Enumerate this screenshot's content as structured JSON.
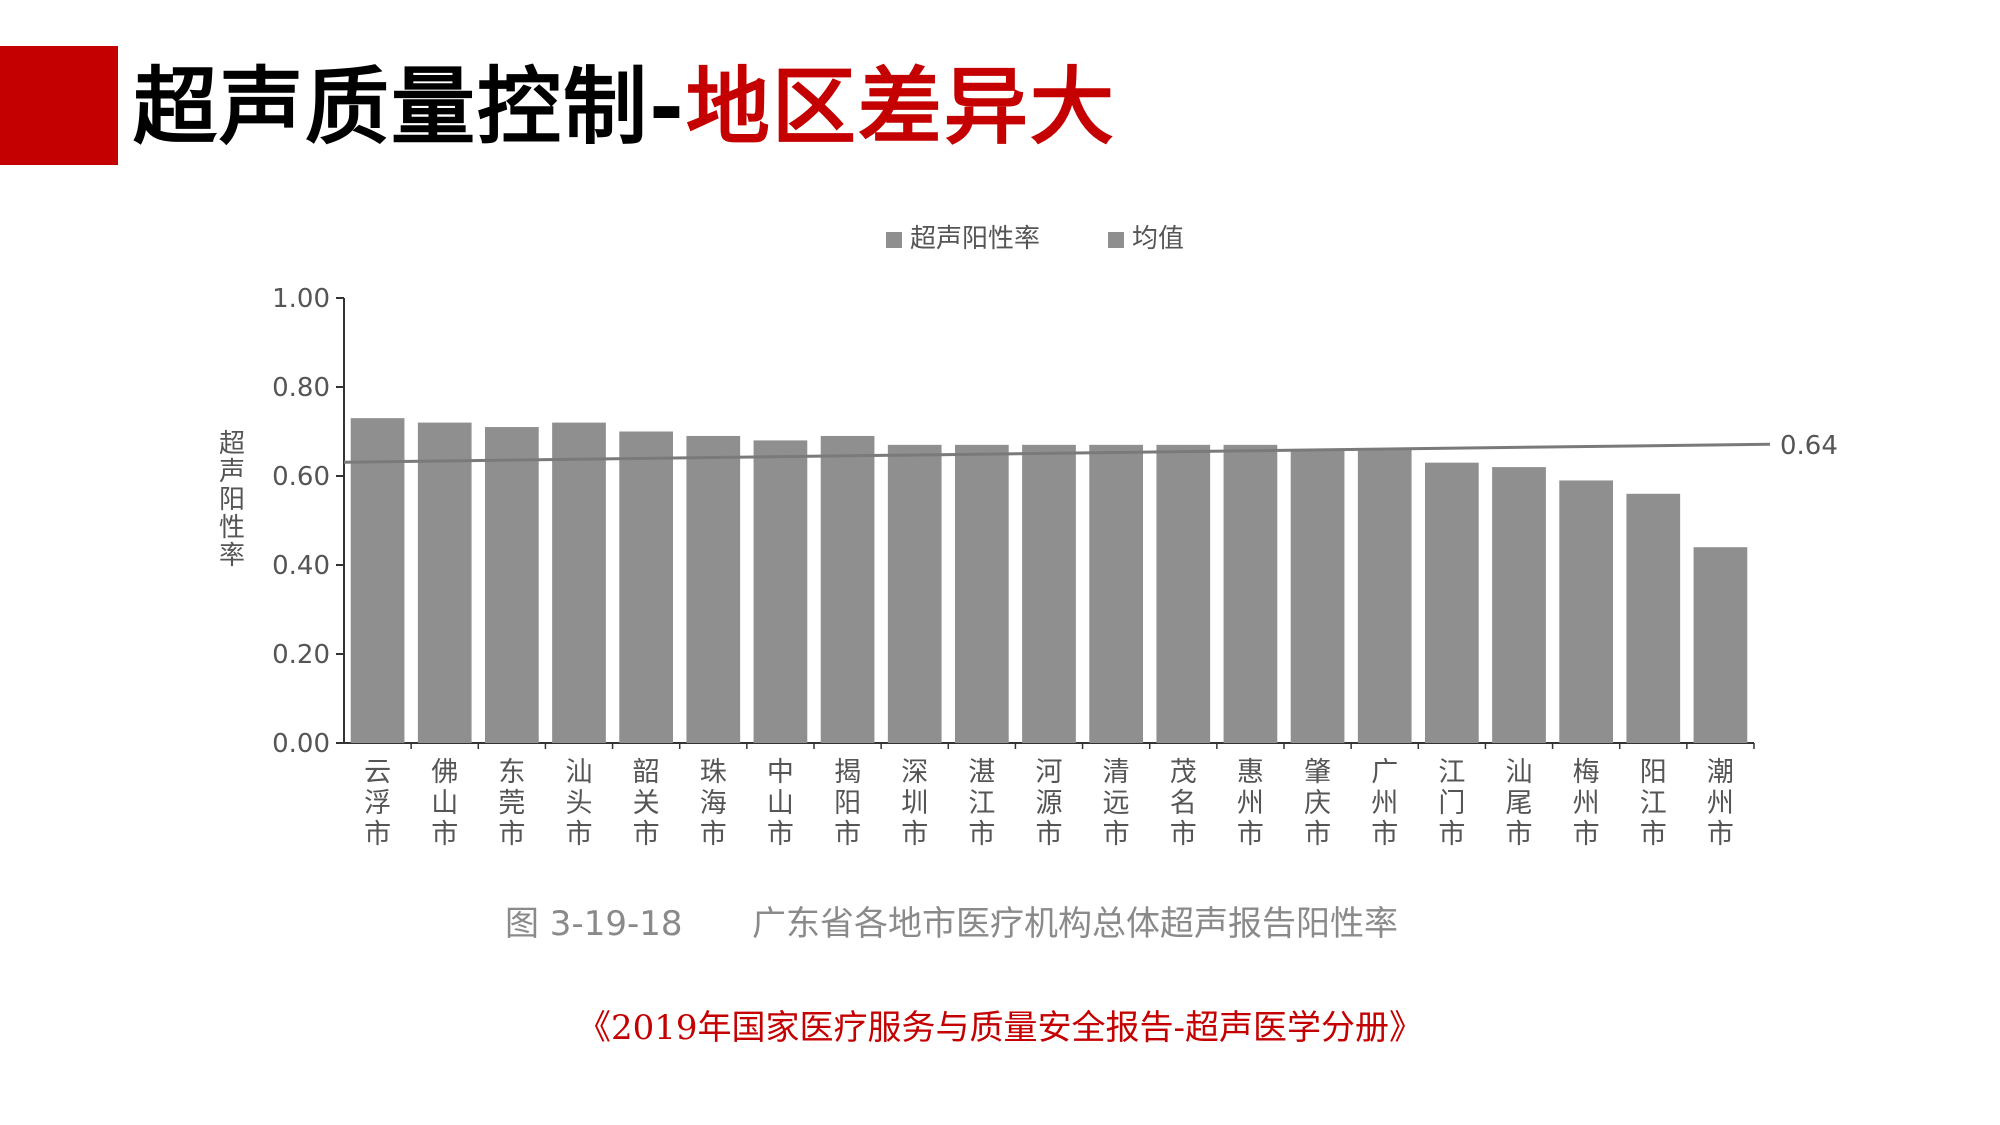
{
  "slide": {
    "title_main": "超声质量控制-",
    "title_highlight": "地区差异大",
    "source": "《2019年国家医疗服务与质量安全报告-超声医学分册》"
  },
  "colors": {
    "accent": "#c40000",
    "bar": "#8f8f8f",
    "mean_line": "#7a7a7a",
    "axis_text": "#555555"
  },
  "chart_data": {
    "type": "bar",
    "caption_number": "图 3-19-18",
    "caption_text": "广东省各地市医疗机构总体超声报告阳性率",
    "legend": [
      "超声阳性率",
      "均值"
    ],
    "ylabel": "超声阳性率",
    "ylim": [
      0,
      1
    ],
    "yticks": [
      "0.00",
      "0.20",
      "0.40",
      "0.60",
      "0.80",
      "1.00"
    ],
    "categories": [
      "云浮市",
      "佛山市",
      "东莞市",
      "汕头市",
      "韶关市",
      "珠海市",
      "中山市",
      "揭阳市",
      "深圳市",
      "湛江市",
      "河源市",
      "清远市",
      "茂名市",
      "惠州市",
      "肇庆市",
      "广州市",
      "江门市",
      "汕尾市",
      "梅州市",
      "阳江市",
      "潮州市"
    ],
    "values": [
      0.73,
      0.72,
      0.71,
      0.72,
      0.7,
      0.69,
      0.68,
      0.69,
      0.67,
      0.67,
      0.67,
      0.67,
      0.67,
      0.67,
      0.66,
      0.66,
      0.63,
      0.62,
      0.59,
      0.56,
      0.44
    ],
    "mean_label": "0.64",
    "grid": false,
    "legend_position": "top-center"
  }
}
